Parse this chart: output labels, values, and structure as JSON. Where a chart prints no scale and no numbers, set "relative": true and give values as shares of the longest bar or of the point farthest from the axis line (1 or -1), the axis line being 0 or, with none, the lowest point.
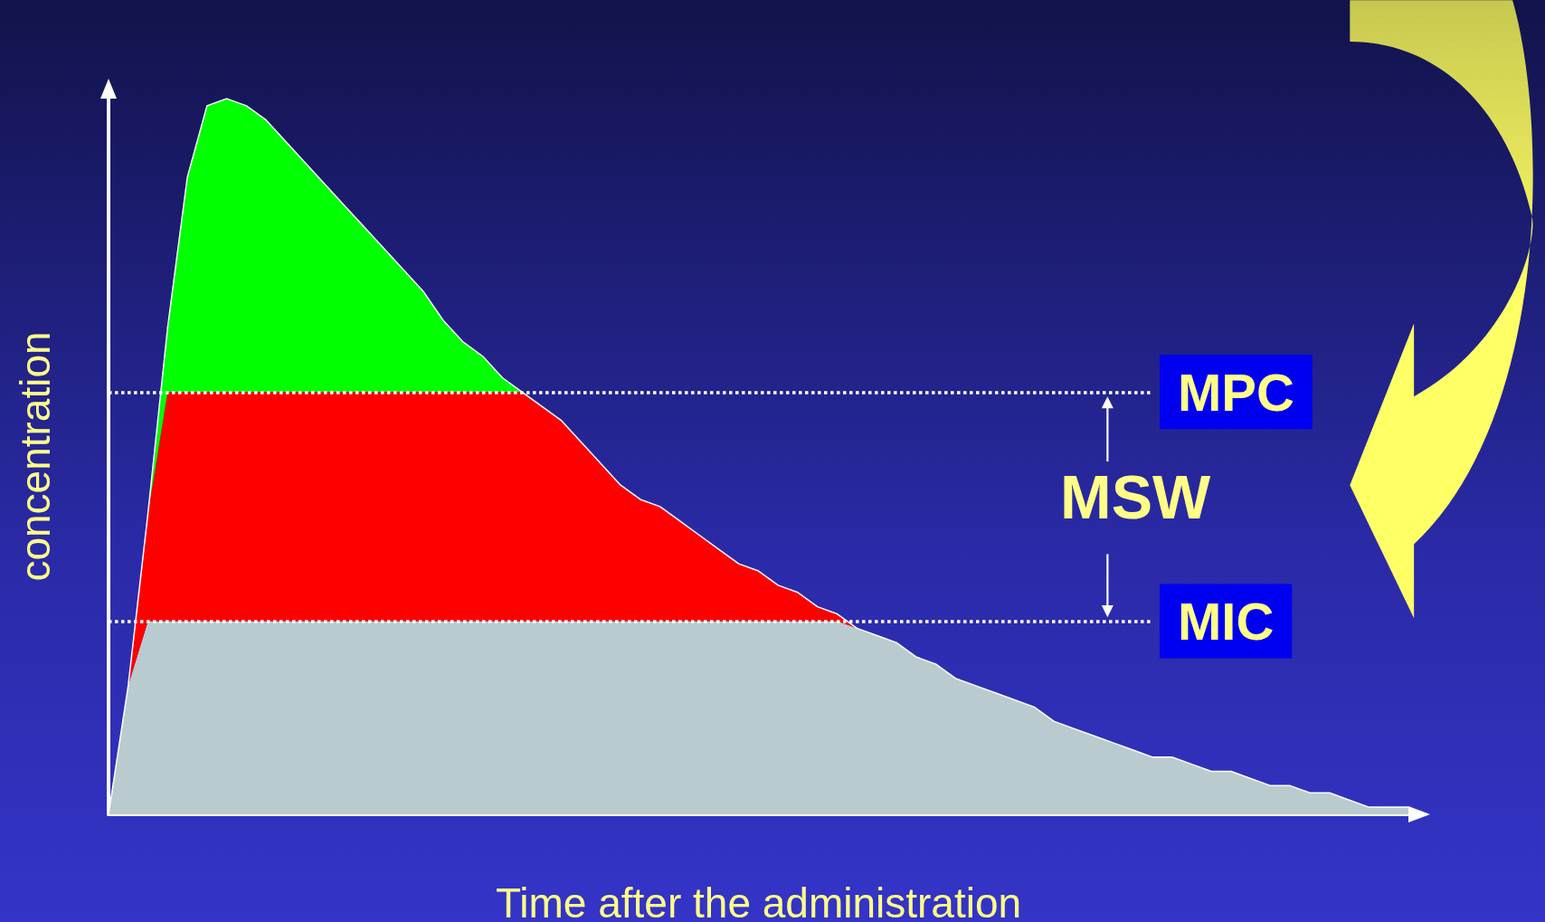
{
  "chart_data": {
    "type": "area",
    "xlabel": "Time after the administration",
    "ylabel": "concentration",
    "relative": true,
    "stacked": true,
    "grid": false,
    "categories": [
      null,
      null,
      null,
      null,
      null,
      null,
      null,
      null,
      null,
      null,
      null,
      null,
      null,
      null,
      null,
      null,
      null,
      null,
      null,
      null,
      null,
      null,
      null,
      null,
      null,
      null,
      null,
      null,
      null,
      null,
      null,
      null,
      null,
      null,
      null,
      null,
      null,
      null,
      null,
      null,
      null,
      null,
      null,
      null,
      null,
      null,
      null,
      null,
      null,
      null,
      null,
      null,
      null,
      null,
      null,
      null,
      null,
      null,
      null,
      null,
      null,
      null,
      null,
      null,
      null,
      null,
      null
    ],
    "series": [
      {
        "color": "#b9cbcf",
        "values": [
          0,
          0.18,
          0.27,
          0.27,
          0.27,
          0.27,
          0.27,
          0.27,
          0.27,
          0.27,
          0.27,
          0.27,
          0.27,
          0.27,
          0.27,
          0.27,
          0.27,
          0.27,
          0.27,
          0.27,
          0.27,
          0.27,
          0.27,
          0.27,
          0.27,
          0.27,
          0.27,
          0.27,
          0.27,
          0.27,
          0.27,
          0.27,
          0.27,
          0.27,
          0.27,
          0.27,
          0.27,
          0.27,
          0.26,
          0.25,
          0.24,
          0.22,
          0.21,
          0.19,
          0.18,
          0.17,
          0.16,
          0.15,
          0.13,
          0.12,
          0.11,
          0.1,
          0.09,
          0.08,
          0.08,
          0.07,
          0.06,
          0.06,
          0.05,
          0.04,
          0.04,
          0.03,
          0.03,
          0.02,
          0.01,
          0.01,
          0.01
        ]
      },
      {
        "color": "#ff0000",
        "values": [
          0,
          0,
          0.15,
          0.32,
          0.32,
          0.32,
          0.32,
          0.32,
          0.32,
          0.32,
          0.32,
          0.32,
          0.32,
          0.32,
          0.32,
          0.32,
          0.32,
          0.32,
          0.32,
          0.32,
          0.32,
          0.32,
          0.3,
          0.28,
          0.25,
          0.22,
          0.19,
          0.17,
          0.16,
          0.14,
          0.12,
          0.1,
          0.08,
          0.07,
          0.05,
          0.04,
          0.02,
          0.01,
          0,
          0,
          0,
          0,
          0,
          0,
          0,
          0,
          0,
          0,
          0,
          0,
          0,
          0,
          0,
          0,
          0,
          0,
          0,
          0,
          0,
          0,
          0,
          0,
          0,
          0,
          0,
          0,
          0
        ]
      },
      {
        "color": "#00ff00",
        "values": [
          0,
          0,
          0,
          0.09,
          0.3,
          0.4,
          0.41,
          0.4,
          0.38,
          0.35,
          0.32,
          0.29,
          0.26,
          0.23,
          0.2,
          0.17,
          0.14,
          0.1,
          0.07,
          0.05,
          0.02,
          0,
          0,
          0,
          0,
          0,
          0,
          0,
          0,
          0,
          0,
          0,
          0,
          0,
          0,
          0,
          0,
          0,
          0,
          0,
          0,
          0,
          0,
          0,
          0,
          0,
          0,
          0,
          0,
          0,
          0,
          0,
          0,
          0,
          0,
          0,
          0,
          0,
          0,
          0,
          0,
          0,
          0,
          0,
          0,
          0,
          0
        ]
      }
    ],
    "ref_lines": [
      {
        "axis": "y",
        "value": 0.59,
        "label": "MPC",
        "color": "#ffffff",
        "line_style": "dotted"
      },
      {
        "axis": "y",
        "value": 0.27,
        "label": "MIC",
        "color": "#ffffff",
        "line_style": "dotted"
      }
    ],
    "annotations": [
      "MSW"
    ]
  }
}
